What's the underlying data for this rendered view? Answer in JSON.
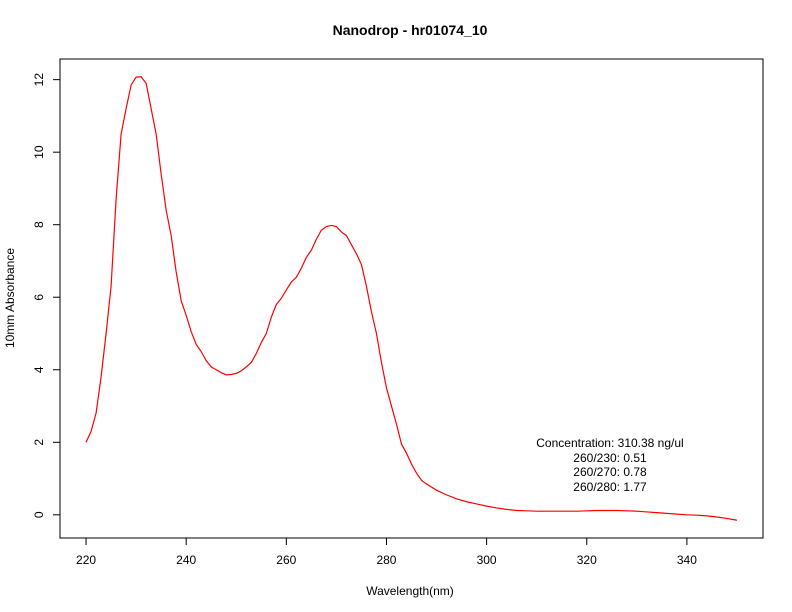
{
  "chart_data": {
    "type": "line",
    "title": "Nanodrop - hr01074_10",
    "xlabel": "Wavelength(nm)",
    "ylabel": "10mm Absorbance",
    "xlim": [
      220,
      350
    ],
    "ylim": [
      0,
      12
    ],
    "x_ticks": [
      "220",
      "240",
      "260",
      "280",
      "300",
      "320",
      "340"
    ],
    "y_ticks": [
      "0",
      "2",
      "4",
      "6",
      "8",
      "10",
      "12"
    ],
    "grid": false,
    "legend": "none",
    "line_color": "#ff0000",
    "x": [
      220,
      221,
      222,
      223,
      224,
      225,
      226,
      227,
      228,
      229,
      230,
      231,
      232,
      233,
      234,
      235,
      236,
      237,
      238,
      239,
      240,
      241,
      242,
      243,
      244,
      245,
      246,
      247,
      248,
      249,
      250,
      251,
      252,
      253,
      254,
      255,
      256,
      257,
      258,
      259,
      260,
      261,
      262,
      263,
      264,
      265,
      266,
      267,
      268,
      269,
      270,
      271,
      272,
      273,
      274,
      275,
      276,
      277,
      278,
      279,
      280,
      281,
      282,
      283,
      284,
      285,
      286,
      287,
      288,
      290,
      292,
      294,
      296,
      298,
      300,
      302,
      304,
      306,
      308,
      310,
      312,
      314,
      316,
      318,
      320,
      322,
      324,
      326,
      328,
      330,
      332,
      334,
      336,
      338,
      340,
      342,
      344,
      346,
      348,
      350
    ],
    "y": [
      2.0,
      2.3,
      2.8,
      3.8,
      5.0,
      6.3,
      8.7,
      10.5,
      11.2,
      11.85,
      12.07,
      12.08,
      11.9,
      11.2,
      10.5,
      9.4,
      8.4,
      7.7,
      6.7,
      5.9,
      5.5,
      5.05,
      4.7,
      4.5,
      4.25,
      4.08,
      4.0,
      3.92,
      3.86,
      3.87,
      3.9,
      3.97,
      4.08,
      4.2,
      4.45,
      4.75,
      5.0,
      5.45,
      5.8,
      5.97,
      6.2,
      6.42,
      6.55,
      6.8,
      7.1,
      7.3,
      7.6,
      7.85,
      7.95,
      7.98,
      7.95,
      7.8,
      7.7,
      7.45,
      7.2,
      6.9,
      6.3,
      5.6,
      5.0,
      4.2,
      3.5,
      3.0,
      2.5,
      1.95,
      1.7,
      1.4,
      1.15,
      0.95,
      0.85,
      0.68,
      0.55,
      0.44,
      0.36,
      0.3,
      0.24,
      0.19,
      0.15,
      0.12,
      0.11,
      0.1,
      0.1,
      0.1,
      0.1,
      0.1,
      0.11,
      0.12,
      0.12,
      0.12,
      0.11,
      0.1,
      0.08,
      0.06,
      0.04,
      0.02,
      0.0,
      -0.01,
      -0.03,
      -0.06,
      -0.1,
      -0.15
    ],
    "annotations": [
      "Concentration: 310.38 ng/ul",
      "260/230: 0.51",
      "260/270: 0.78",
      "260/280: 1.77"
    ]
  }
}
